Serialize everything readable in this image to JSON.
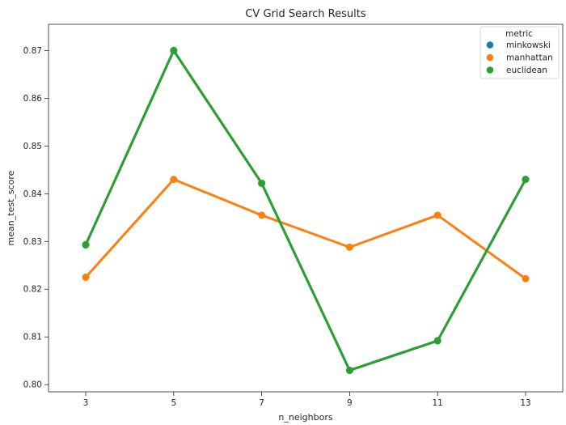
{
  "chart_data": {
    "type": "line",
    "title": "CV Grid Search Results",
    "xlabel": "n_neighbors",
    "ylabel": "mean_test_score",
    "categories": [
      "3",
      "5",
      "7",
      "9",
      "11",
      "13"
    ],
    "y_ticks": [
      "0.80",
      "0.81",
      "0.82",
      "0.83",
      "0.84",
      "0.85",
      "0.86",
      "0.87"
    ],
    "ylim": [
      0.7985,
      0.8755
    ],
    "grid": false,
    "legend": {
      "title": "metric",
      "placement": "top-right"
    },
    "series": [
      {
        "name": "minkowski",
        "color": "#1f77b4",
        "values": [
          0.8293,
          0.87,
          0.8422,
          0.803,
          0.8092,
          0.843
        ]
      },
      {
        "name": "manhattan",
        "color": "#ff7f0e",
        "values": [
          0.8225,
          0.843,
          0.8355,
          0.8288,
          0.8355,
          0.8222
        ]
      },
      {
        "name": "euclidean",
        "color": "#2ca02c",
        "values": [
          0.8293,
          0.87,
          0.8422,
          0.803,
          0.8092,
          0.843
        ]
      }
    ]
  }
}
